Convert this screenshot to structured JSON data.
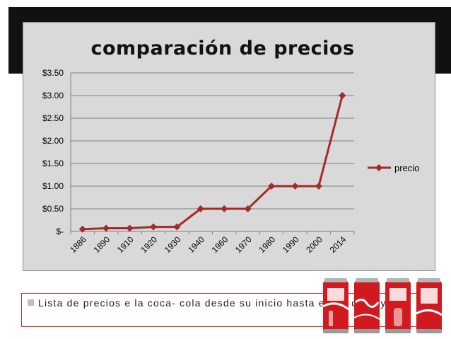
{
  "chart_data": {
    "type": "line",
    "title": "comparación de precios",
    "categories": [
      "1886",
      "1890",
      "1910",
      "1920",
      "1930",
      "1940",
      "1960",
      "1970",
      "1980",
      "1990",
      "2000",
      "2014"
    ],
    "series": [
      {
        "name": "precio",
        "values": [
          0.05,
          0.07,
          0.07,
          0.1,
          0.1,
          0.5,
          0.5,
          0.5,
          1.0,
          1.0,
          1.0,
          3.0
        ]
      }
    ],
    "y_ticks": [
      "$-",
      "$0.50",
      "$1.00",
      "$1.50",
      "$2.00",
      "$2.50",
      "$3.00",
      "$3.50"
    ],
    "ylim": [
      0,
      3.5
    ],
    "grid": true,
    "legend_position": "right",
    "colors": {
      "series": "#a52a2a",
      "grid": "#7f7f7f",
      "plot_bg": "#d9d9d9"
    }
  },
  "caption": {
    "text": "Lista de precios e la coca- cola desde su inicio hasta el día de hoy."
  },
  "decor": {
    "cans": [
      "coca-cola-can",
      "coca-cola-can",
      "coca-cola-can",
      "coca-cola-can"
    ]
  }
}
